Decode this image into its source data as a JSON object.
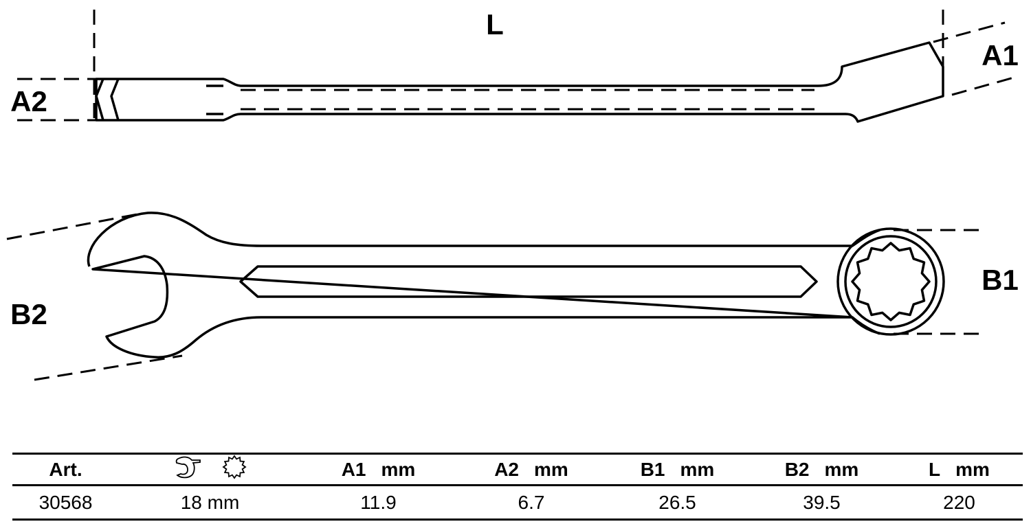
{
  "labels": {
    "length": "L",
    "a1": "A1",
    "a2": "A2",
    "b1": "B1",
    "b2": "B2"
  },
  "table": {
    "headers": [
      {
        "text": "Art.",
        "unit": ""
      },
      {
        "icon": "open-end-and-ring-icon"
      },
      {
        "text": "A1",
        "unit": "mm"
      },
      {
        "text": "A2",
        "unit": "mm"
      },
      {
        "text": "B1",
        "unit": "mm"
      },
      {
        "text": "B2",
        "unit": "mm"
      },
      {
        "text": "L",
        "unit": "mm"
      }
    ],
    "rows": [
      [
        "30568",
        "18 mm",
        "11.9",
        "6.7",
        "26.5",
        "39.5",
        "220"
      ]
    ]
  }
}
